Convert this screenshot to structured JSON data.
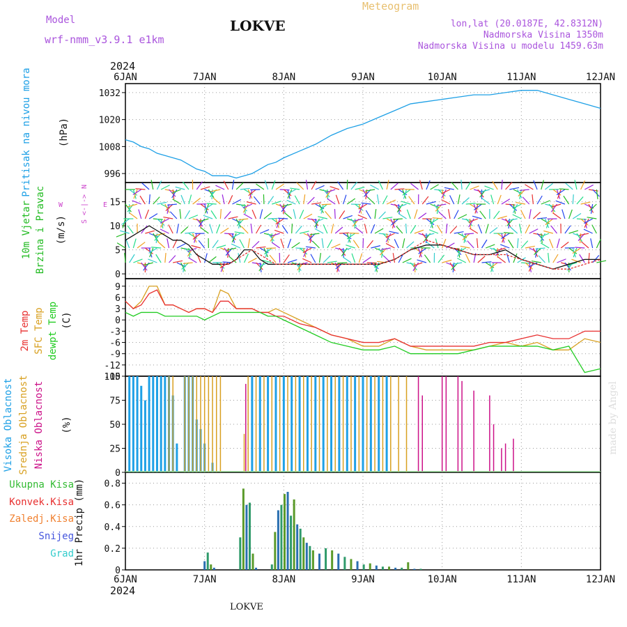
{
  "header": {
    "model_label": "Model",
    "model_name": "wrf-nmm_v3.9.1 e1km",
    "title": "LOKVE",
    "meteogram": "Meteogram",
    "lonlat": "lon,lat (20.0187E, 42.8312N)",
    "elevation": "Nadmorska Visina 1350m",
    "model_elevation": "Nadmorska Visina u modelu 1459.63m",
    "year_top": "2024",
    "year_bottom": "2024",
    "footer_title": "LOKVE",
    "credit": "made by Angel"
  },
  "colors": {
    "pressure": "#1ea0e6",
    "wind_label": "#22bb22",
    "wind_speed": "#111111",
    "wind_gust": "#e03030",
    "temp_2m": "#e83030",
    "temp_sfc": "#d8a020",
    "temp_dew": "#22cc22",
    "cloud_high": "#1ea0e6",
    "cloud_mid": "#d8a020",
    "cloud_low": "#cc1188",
    "precip_total": "#33bb33",
    "precip_conv": "#e83030",
    "precip_frozen": "#f08030",
    "precip_snow": "#4455dd",
    "precip_graup": "#33cccc",
    "direction_legend": "#cc44cc",
    "model_text": "#aa55dd",
    "meteogram_text": "#e8c070"
  },
  "chart_data": [
    {
      "type": "line",
      "name": "pressure",
      "ylabel_main": "Pritisak na nivou mora",
      "ylabel_unit": "(hPa)",
      "xlabels": [
        "6JAN",
        "7JAN",
        "8JAN",
        "9JAN",
        "10JAN",
        "11JAN",
        "12JAN"
      ],
      "yticks": [
        "996",
        "1008",
        "1020",
        "1032"
      ],
      "ylim": [
        992,
        1036
      ],
      "series": [
        {
          "x": [
            0,
            0.1,
            0.2,
            0.3,
            0.4,
            0.5,
            0.6,
            0.7,
            0.8,
            0.9,
            1.0,
            1.1,
            1.2,
            1.3,
            1.4,
            1.5,
            1.6,
            1.7,
            1.8,
            1.9,
            2.0,
            2.2,
            2.4,
            2.6,
            2.8,
            3.0,
            3.2,
            3.4,
            3.6,
            3.8,
            4.0,
            4.2,
            4.4,
            4.6,
            4.8,
            5.0,
            5.2,
            5.4,
            5.6,
            5.8,
            6.0
          ],
          "values": [
            1011,
            1010,
            1008,
            1007,
            1005,
            1004,
            1003,
            1002,
            1000,
            998,
            997,
            995,
            995,
            995,
            994,
            995,
            996,
            998,
            1000,
            1001,
            1003,
            1006,
            1009,
            1013,
            1016,
            1018,
            1021,
            1024,
            1027,
            1028,
            1029,
            1030,
            1031,
            1031,
            1032,
            1033,
            1033,
            1031,
            1029,
            1027,
            1025
          ]
        }
      ]
    },
    {
      "type": "line",
      "name": "wind",
      "ylabel_main": "10m Vjetar",
      "ylabel_sub": "Brzina i Pravac",
      "ylabel_unit": "(m/s)",
      "direction_legend": [
        "N",
        "E",
        "S",
        "W",
        "<-|->"
      ],
      "yticks": [
        "0",
        "5",
        "10",
        "15"
      ],
      "ylim": [
        -1,
        19
      ],
      "series": [
        {
          "name": "speed",
          "x": [
            0,
            0.1,
            0.2,
            0.3,
            0.4,
            0.5,
            0.6,
            0.7,
            0.8,
            0.9,
            1.0,
            1.1,
            1.2,
            1.3,
            1.4,
            1.5,
            1.6,
            1.7,
            1.8,
            1.9,
            2.0,
            2.2,
            2.4,
            2.6,
            2.8,
            3.0,
            3.2,
            3.4,
            3.6,
            3.8,
            4.0,
            4.2,
            4.4,
            4.6,
            4.8,
            5.0,
            5.2,
            5.4,
            5.6,
            5.8,
            6.0
          ],
          "values": [
            7,
            8,
            9,
            10,
            9,
            8,
            7,
            7,
            6,
            4,
            3,
            2,
            2,
            2,
            3,
            5,
            5,
            3,
            2,
            2,
            2,
            2,
            2,
            2,
            2,
            2,
            2,
            3,
            5,
            6,
            6,
            5,
            4,
            4,
            5,
            3,
            2,
            1,
            2,
            3,
            3
          ]
        },
        {
          "name": "gust",
          "x": [
            1.2,
            1.3,
            1.4,
            1.5,
            1.6,
            1.7,
            1.8,
            1.9,
            2.0,
            2.2,
            2.4,
            2.6,
            2.8,
            3.0,
            3.2,
            3.4,
            3.6,
            3.8,
            4.0,
            4.2,
            4.4,
            4.6,
            4.8,
            5.0,
            5.2,
            5.4,
            5.6,
            5.8,
            6.0
          ],
          "values": [
            2,
            2,
            3,
            4,
            5,
            4,
            3,
            2,
            2,
            2,
            2,
            2,
            2,
            2,
            2,
            3,
            5,
            7,
            6,
            5,
            4,
            4,
            4,
            3,
            2,
            1,
            1,
            2,
            3
          ]
        }
      ]
    },
    {
      "type": "line",
      "name": "temperature",
      "ylabel_2m": "2m Temp",
      "ylabel_sfc": "SFC Temp",
      "ylabel_dew": "dewpt Temp",
      "ylabel_unit": "(C)",
      "yticks": [
        "-15",
        "-12",
        "-9",
        "-6",
        "-3",
        "0",
        "3",
        "6",
        "9"
      ],
      "ylim": [
        -15,
        11
      ],
      "series": [
        {
          "name": "2m",
          "x": [
            0,
            0.1,
            0.2,
            0.3,
            0.4,
            0.5,
            0.6,
            0.7,
            0.8,
            0.9,
            1.0,
            1.1,
            1.2,
            1.3,
            1.4,
            1.5,
            1.6,
            1.7,
            1.8,
            1.9,
            2.0,
            2.2,
            2.4,
            2.6,
            2.8,
            3.0,
            3.2,
            3.4,
            3.6,
            3.8,
            4.0,
            4.2,
            4.4,
            4.6,
            4.8,
            5.0,
            5.2,
            5.4,
            5.6,
            5.8,
            6.0
          ],
          "values": [
            5,
            3,
            4,
            7,
            8,
            4,
            4,
            3,
            2,
            3,
            3,
            2,
            5,
            5,
            3,
            3,
            3,
            2,
            2,
            1,
            1,
            -1,
            -2,
            -4,
            -5,
            -6,
            -6,
            -5,
            -7,
            -7,
            -7,
            -7,
            -7,
            -6,
            -6,
            -5,
            -4,
            -5,
            -5,
            -3,
            -3
          ]
        },
        {
          "name": "sfc",
          "x": [
            0,
            0.1,
            0.2,
            0.3,
            0.4,
            0.5,
            0.6,
            0.7,
            0.8,
            0.9,
            1.0,
            1.1,
            1.2,
            1.3,
            1.4,
            1.5,
            1.6,
            1.7,
            1.8,
            1.9,
            2.0,
            2.2,
            2.4,
            2.6,
            2.8,
            3.0,
            3.2,
            3.4,
            3.6,
            3.8,
            4.0,
            4.2,
            4.4,
            4.6,
            4.8,
            5.0,
            5.2,
            5.4,
            5.6,
            5.8,
            6.0
          ],
          "values": [
            5,
            3,
            5,
            9,
            9,
            4,
            4,
            3,
            2,
            3,
            3,
            2,
            8,
            7,
            3,
            3,
            3,
            2,
            2,
            3,
            2,
            0,
            -2,
            -4,
            -5,
            -7,
            -7,
            -5,
            -7,
            -8,
            -8,
            -8,
            -8,
            -7,
            -6,
            -7,
            -6,
            -8,
            -8,
            -5,
            -6
          ]
        },
        {
          "name": "dewpt",
          "x": [
            0,
            0.1,
            0.2,
            0.3,
            0.4,
            0.5,
            0.6,
            0.7,
            0.8,
            0.9,
            1.0,
            1.1,
            1.2,
            1.3,
            1.4,
            1.5,
            1.6,
            1.7,
            1.8,
            1.9,
            2.0,
            2.2,
            2.4,
            2.6,
            2.8,
            3.0,
            3.2,
            3.4,
            3.6,
            3.8,
            4.0,
            4.2,
            4.4,
            4.6,
            4.8,
            5.0,
            5.2,
            5.4,
            5.6,
            5.8,
            6.0
          ],
          "values": [
            2,
            1,
            2,
            2,
            2,
            1,
            1,
            1,
            1,
            1,
            0,
            1,
            2,
            2,
            2,
            2,
            2,
            2,
            1,
            1,
            0,
            -2,
            -4,
            -6,
            -7,
            -8,
            -8,
            -7,
            -9,
            -9,
            -9,
            -9,
            -8,
            -7,
            -7,
            -7,
            -7,
            -8,
            -7,
            -14,
            -13
          ]
        }
      ]
    },
    {
      "type": "bar",
      "name": "clouds",
      "ylabel_high": "Visoka Oblacnost",
      "ylabel_mid": "Srednja Oblacnost",
      "ylabel_low": "Niska Oblacnost",
      "ylabel_unit": "(%)",
      "yticks": [
        "0",
        "25",
        "50",
        "75",
        "100"
      ],
      "ylim": [
        0,
        100
      ],
      "series": [
        {
          "name": "high",
          "x": [
            0.05,
            0.1,
            0.15,
            0.2,
            0.25,
            0.3,
            0.35,
            0.4,
            0.45,
            0.5,
            0.55,
            0.6,
            0.65,
            0.75,
            0.8,
            0.85,
            0.9,
            0.95,
            1.0,
            1.1,
            1.6,
            1.7,
            1.8,
            1.9,
            2.0,
            2.1,
            2.2,
            2.3,
            2.4,
            2.5,
            2.6,
            2.7,
            2.8,
            2.9,
            3.0,
            3.1,
            3.2,
            3.3
          ],
          "values": [
            100,
            100,
            100,
            90,
            75,
            100,
            100,
            100,
            100,
            100,
            100,
            80,
            30,
            100,
            100,
            100,
            55,
            45,
            30,
            10,
            100,
            100,
            100,
            100,
            100,
            100,
            100,
            100,
            100,
            100,
            100,
            100,
            100,
            100,
            100,
            100,
            100,
            100
          ]
        },
        {
          "name": "mid",
          "x": [
            0.55,
            0.6,
            0.75,
            0.8,
            0.85,
            0.9,
            0.95,
            1.0,
            1.05,
            1.1,
            1.15,
            1.2,
            1.5,
            1.55,
            1.65,
            1.75,
            1.85,
            1.95,
            2.05,
            2.15,
            2.25,
            2.35,
            2.45,
            2.55,
            2.65,
            2.75,
            2.85,
            2.95,
            3.05,
            3.15,
            3.25,
            3.35,
            3.45,
            3.55
          ],
          "values": [
            100,
            100,
            100,
            100,
            100,
            100,
            100,
            100,
            100,
            100,
            100,
            100,
            40,
            100,
            100,
            100,
            100,
            100,
            100,
            100,
            100,
            100,
            100,
            100,
            100,
            100,
            100,
            100,
            100,
            100,
            100,
            100,
            100,
            100
          ]
        },
        {
          "name": "low",
          "x": [
            1.52,
            3.7,
            3.75,
            4.0,
            4.05,
            4.2,
            4.25,
            4.4,
            4.6,
            4.65,
            4.75,
            4.8,
            4.9
          ],
          "values": [
            92,
            100,
            80,
            100,
            100,
            100,
            95,
            85,
            80,
            50,
            25,
            30,
            35
          ]
        }
      ]
    },
    {
      "type": "bar",
      "name": "precip",
      "ylabel_total": "Ukupna Kisa",
      "ylabel_conv": "Konvek.Kisa",
      "ylabel_frozen": "Zaledj.Kisa",
      "ylabel_snow": "Snijeg",
      "ylabel_graup": "Grad",
      "ylabel_unit": "1hr Precip (mm)",
      "yticks": [
        "0",
        "0.2",
        "0.4",
        "0.6",
        "0.8"
      ],
      "ylim": [
        0,
        0.9
      ],
      "series": [
        {
          "name": "total",
          "x": [
            1.0,
            1.04,
            1.08,
            1.12,
            1.45,
            1.49,
            1.53,
            1.57,
            1.61,
            1.65,
            1.85,
            1.89,
            1.93,
            1.97,
            2.01,
            2.05,
            2.09,
            2.13,
            2.17,
            2.21,
            2.25,
            2.29,
            2.33,
            2.37,
            2.45,
            2.53,
            2.61,
            2.69,
            2.77,
            2.85,
            2.93,
            3.01,
            3.09,
            3.17,
            3.25,
            3.33,
            3.41,
            3.49,
            3.57,
            3.65,
            3.73
          ],
          "values": [
            0.08,
            0.16,
            0.05,
            0.02,
            0.3,
            0.75,
            0.6,
            0.62,
            0.15,
            0.02,
            0.05,
            0.35,
            0.55,
            0.6,
            0.7,
            0.72,
            0.5,
            0.65,
            0.42,
            0.38,
            0.3,
            0.25,
            0.22,
            0.18,
            0.15,
            0.2,
            0.18,
            0.15,
            0.12,
            0.1,
            0.08,
            0.05,
            0.06,
            0.04,
            0.03,
            0.03,
            0.02,
            0.02,
            0.07,
            0.01,
            0.01
          ]
        }
      ]
    }
  ]
}
